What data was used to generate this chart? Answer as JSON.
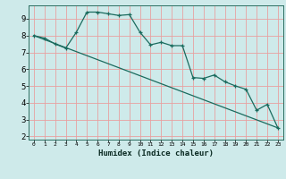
{
  "xlabel": "Humidex (Indice chaleur)",
  "bg_color": "#ceeaea",
  "grid_color": "#e8a0a0",
  "line_color": "#1a6b5e",
  "xlim": [
    -0.5,
    23.5
  ],
  "ylim": [
    1.8,
    9.8
  ],
  "yticks": [
    2,
    3,
    4,
    5,
    6,
    7,
    8,
    9
  ],
  "xticks": [
    0,
    1,
    2,
    3,
    4,
    5,
    6,
    7,
    8,
    9,
    10,
    11,
    12,
    13,
    14,
    15,
    16,
    17,
    18,
    19,
    20,
    21,
    22,
    23
  ],
  "series1_x": [
    0,
    1,
    2,
    3,
    4,
    5,
    6,
    7,
    8,
    9,
    10,
    11,
    12,
    13,
    14,
    15,
    16,
    17,
    18,
    19,
    20,
    21,
    22,
    23
  ],
  "series1_y": [
    8.0,
    7.85,
    7.5,
    7.25,
    8.2,
    9.4,
    9.4,
    9.3,
    9.2,
    9.25,
    8.2,
    7.45,
    7.6,
    7.4,
    7.4,
    5.5,
    5.45,
    5.65,
    5.25,
    5.0,
    4.8,
    3.55,
    3.9,
    2.5
  ],
  "series2_x": [
    0,
    23
  ],
  "series2_y": [
    8.0,
    2.5
  ]
}
